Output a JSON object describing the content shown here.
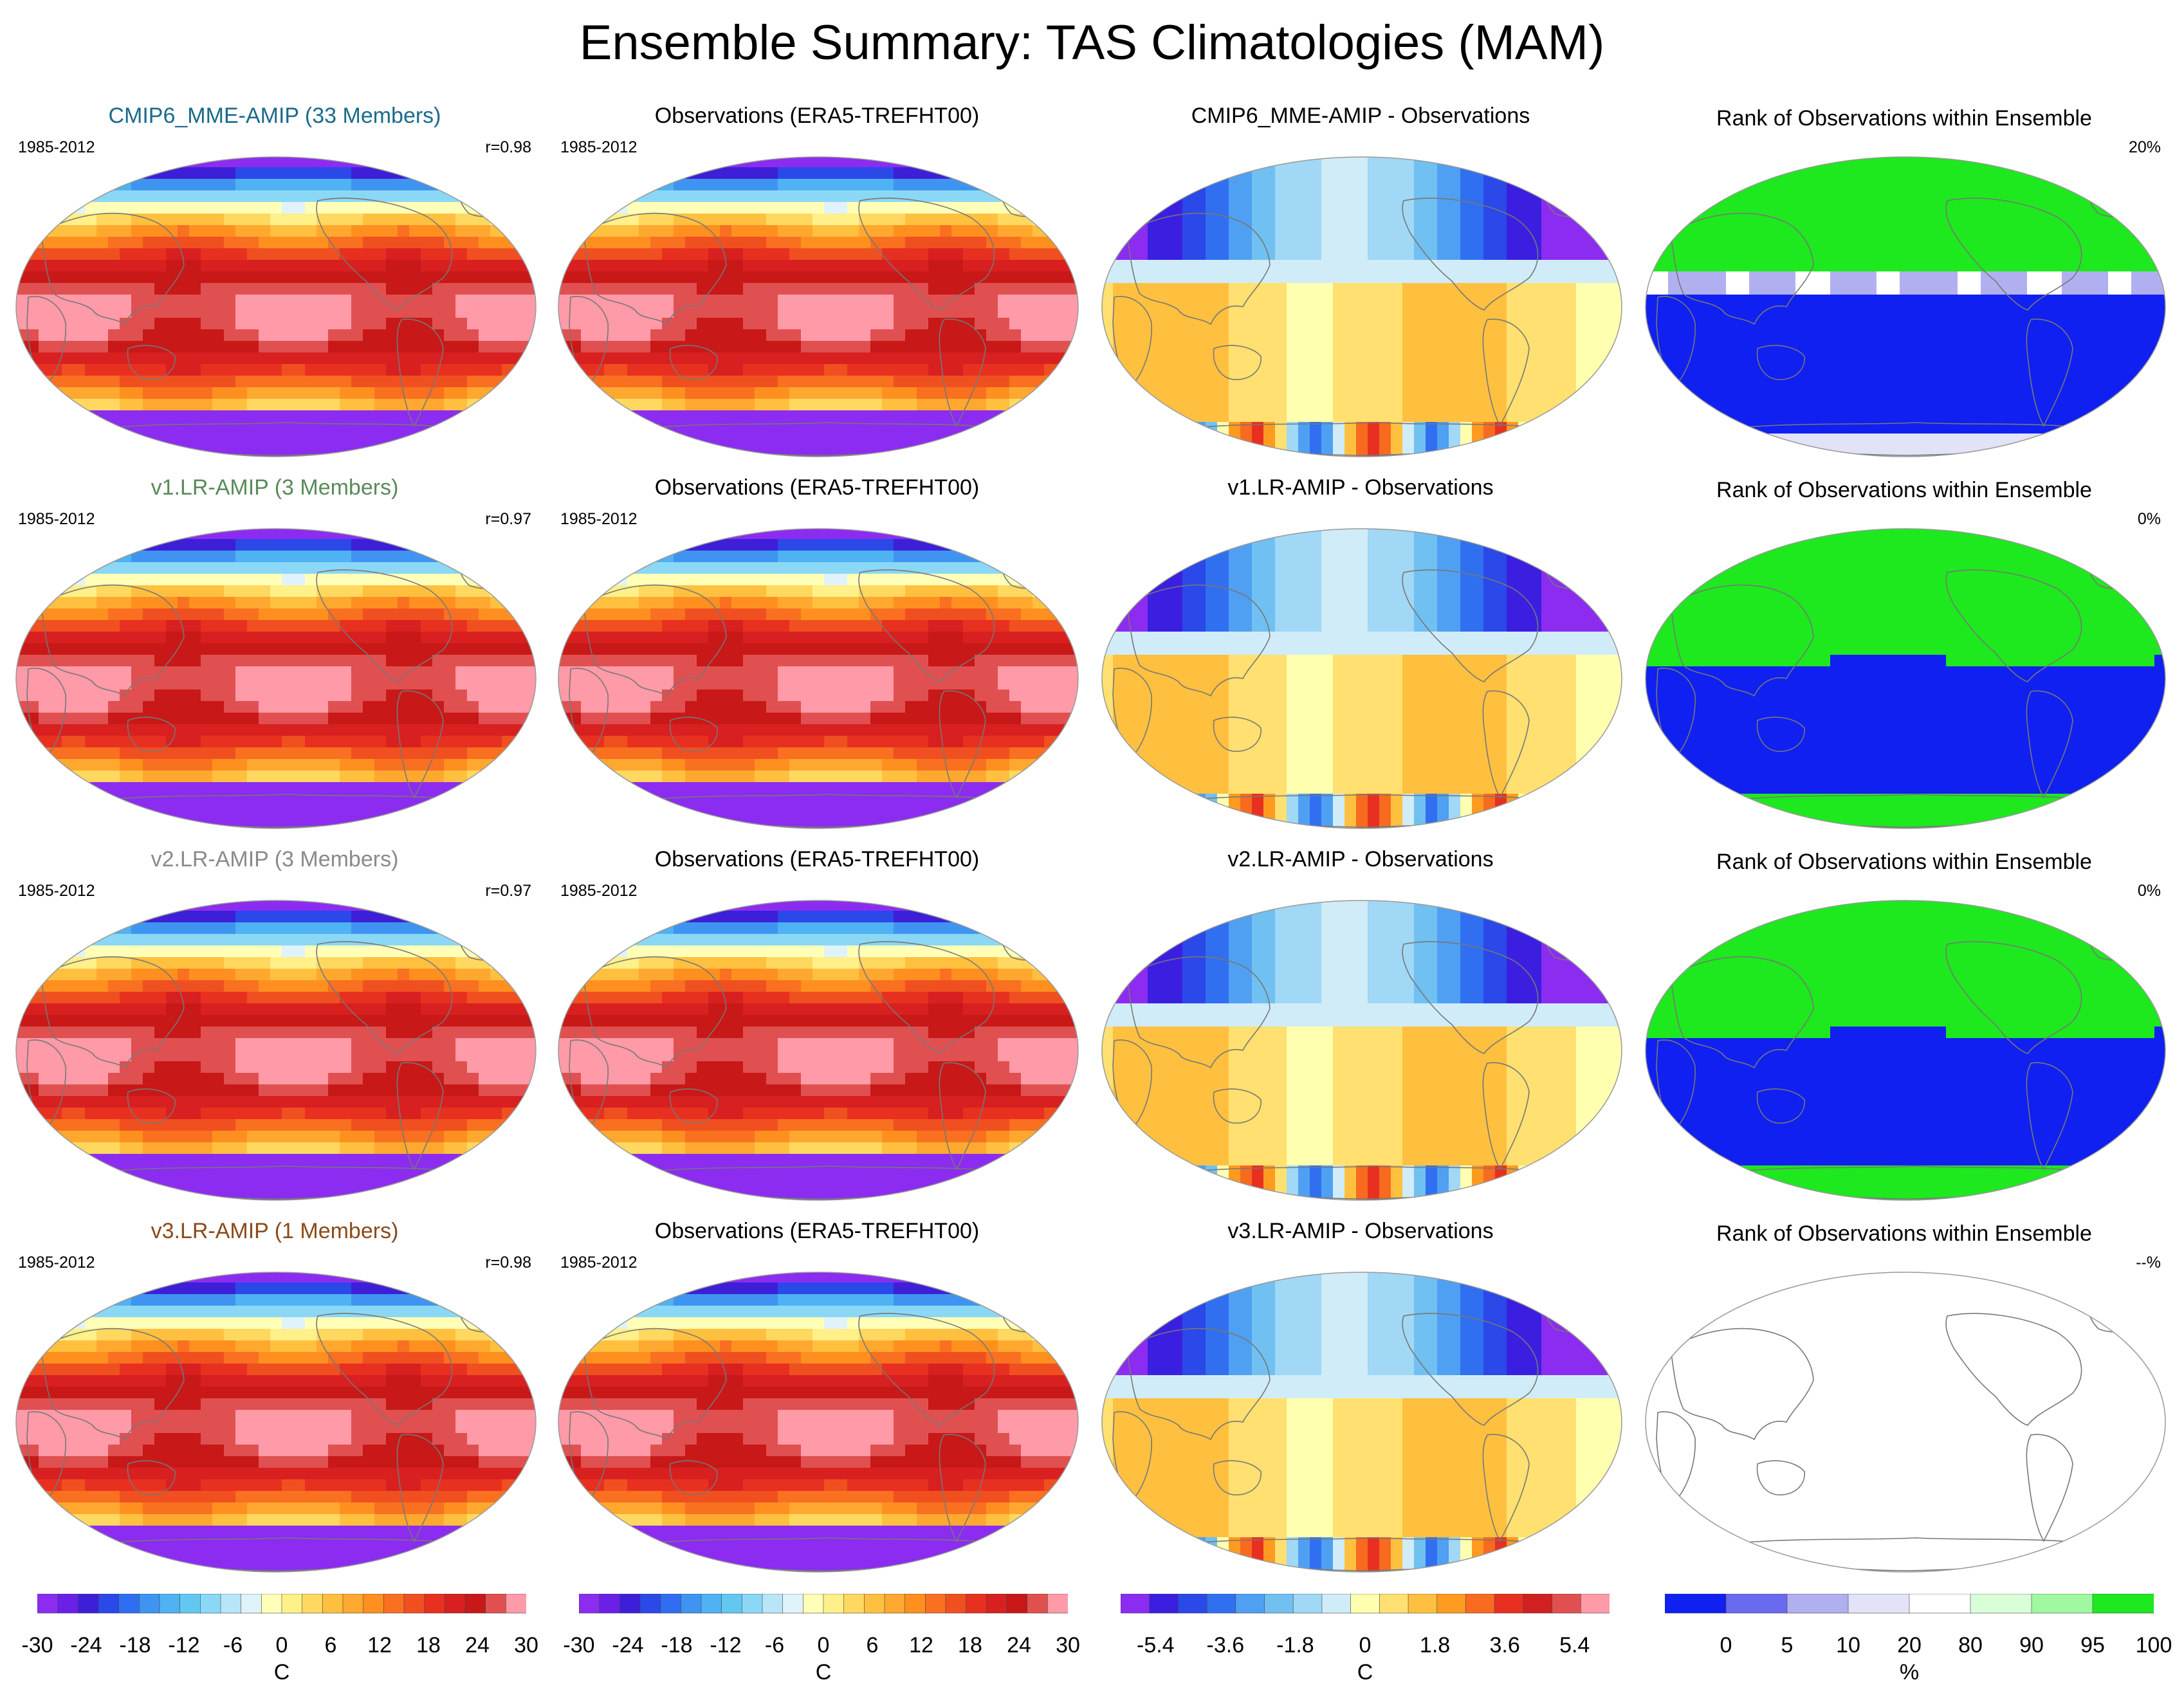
{
  "title": "Ensemble Summary: TAS Climatologies (MAM)",
  "rows": [
    {
      "model": {
        "title": "CMIP6_MME-AMIP (33 Members)",
        "title_color": "#1a6a8c",
        "period": "1985-2012",
        "corr": "r=0.98"
      },
      "obs": {
        "title": "Observations (ERA5-TREFHT00)",
        "period": "1985-2012"
      },
      "diff": {
        "title": "CMIP6_MME-AMIP - Observations"
      },
      "rank": {
        "title": "Rank of Observations within Ensemble",
        "pct": "20%",
        "pattern": "mme"
      }
    },
    {
      "model": {
        "title": "v1.LR-AMIP (3 Members)",
        "title_color": "#5a8a5a",
        "period": "1985-2012",
        "corr": "r=0.97"
      },
      "obs": {
        "title": "Observations (ERA5-TREFHT00)",
        "period": "1985-2012"
      },
      "diff": {
        "title": "v1.LR-AMIP - Observations"
      },
      "rank": {
        "title": "Rank of Observations within Ensemble",
        "pct": "0%",
        "pattern": "binary"
      }
    },
    {
      "model": {
        "title": "v2.LR-AMIP (3 Members)",
        "title_color": "#8a8a8a",
        "period": "1985-2012",
        "corr": "r=0.97"
      },
      "obs": {
        "title": "Observations (ERA5-TREFHT00)",
        "period": "1985-2012"
      },
      "diff": {
        "title": "v2.LR-AMIP - Observations"
      },
      "rank": {
        "title": "Rank of Observations within Ensemble",
        "pct": "0%",
        "pattern": "binary"
      }
    },
    {
      "model": {
        "title": "v3.LR-AMIP (1 Members)",
        "title_color": "#8a4a1a",
        "period": "1985-2012",
        "corr": "r=0.98"
      },
      "obs": {
        "title": "Observations (ERA5-TREFHT00)",
        "period": "1985-2012"
      },
      "diff": {
        "title": "v3.LR-AMIP - Observations"
      },
      "rank": {
        "title": "Rank of Observations within Ensemble",
        "pct": "--%",
        "pattern": "empty"
      }
    }
  ],
  "chart_data": {
    "type": "heatmap",
    "projection": "Robinson (Pacific-centered)",
    "variable": "TAS",
    "season": "MAM",
    "grid": "4 rows x 4 columns of global maps",
    "colorbars": [
      {
        "name": "climatology",
        "unit": "C",
        "tick_labels": [
          "-30",
          "-24",
          "-18",
          "-12",
          "-6",
          "0",
          "6",
          "12",
          "18",
          "24",
          "30"
        ],
        "range": [
          -30,
          30
        ],
        "colors": [
          "#8b2cf0",
          "#6a20e6",
          "#3d1fd8",
          "#2b48e8",
          "#2f6ef0",
          "#3e94f0",
          "#4fb2f2",
          "#62c8f2",
          "#8ad8f5",
          "#b8e6f8",
          "#e0f2fa",
          "#ffffb8",
          "#fff08a",
          "#ffd860",
          "#ffc040",
          "#ffa830",
          "#ff9020",
          "#f87020",
          "#f05020",
          "#e83020",
          "#d82020",
          "#c81818",
          "#e05050",
          "#ff9aa8"
        ]
      },
      {
        "name": "observations",
        "unit": "C",
        "tick_labels": [
          "-30",
          "-24",
          "-18",
          "-12",
          "-6",
          "0",
          "6",
          "12",
          "18",
          "24",
          "30"
        ],
        "range": [
          -30,
          30
        ],
        "colors": [
          "#8b2cf0",
          "#6a20e6",
          "#3d1fd8",
          "#2b48e8",
          "#2f6ef0",
          "#3e94f0",
          "#4fb2f2",
          "#62c8f2",
          "#8ad8f5",
          "#b8e6f8",
          "#e0f2fa",
          "#ffffb8",
          "#fff08a",
          "#ffd860",
          "#ffc040",
          "#ffa830",
          "#ff9020",
          "#f87020",
          "#f05020",
          "#e83020",
          "#d82020",
          "#c81818",
          "#e05050",
          "#ff9aa8"
        ]
      },
      {
        "name": "difference",
        "unit": "C",
        "tick_labels": [
          "-5.4",
          "-3.6",
          "-1.8",
          "0",
          "1.8",
          "3.6",
          "5.4"
        ],
        "range": [
          -6.3,
          6.3
        ],
        "colors": [
          "#8b2cf0",
          "#3a1fe0",
          "#2b48e8",
          "#3070f0",
          "#4fa0f2",
          "#70c0f2",
          "#a0d8f5",
          "#d0ecf8",
          "#ffffb0",
          "#ffe070",
          "#ffc040",
          "#ff9a20",
          "#f86a20",
          "#e83020",
          "#d02020",
          "#e05050",
          "#ff9aa8"
        ]
      },
      {
        "name": "rank",
        "unit": "%",
        "tick_labels": [
          "0",
          "5",
          "10",
          "20",
          "80",
          "90",
          "95",
          "100"
        ],
        "bins": [
          [
            0,
            5
          ],
          [
            5,
            10
          ],
          [
            10,
            20
          ],
          [
            20,
            80
          ],
          [
            80,
            90
          ],
          [
            90,
            95
          ],
          [
            95,
            100
          ]
        ],
        "colors": [
          "#1020f0",
          "#6a6af0",
          "#b0b0f0",
          "#e2e2f8",
          "#ffffff",
          "#d8ffd8",
          "#a0f8a0",
          "#1ee81e"
        ]
      }
    ]
  }
}
